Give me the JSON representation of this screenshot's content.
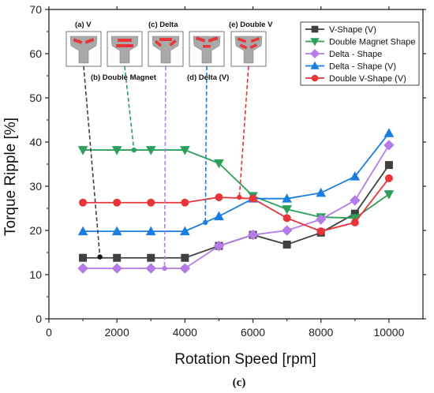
{
  "caption": "(c)",
  "chart_data": {
    "type": "line",
    "xlabel": "Rotation Speed [rpm]",
    "ylabel": "Torque Ripple [%]",
    "xlim": [
      0,
      11000
    ],
    "ylim": [
      0,
      70
    ],
    "xticks": [
      0,
      2000,
      4000,
      6000,
      8000,
      10000
    ],
    "yticks": [
      0,
      10,
      20,
      30,
      40,
      50,
      60,
      70
    ],
    "grid": false,
    "legend_position": "top-right",
    "x": [
      1000,
      2000,
      3000,
      4000,
      5000,
      6000,
      7000,
      8000,
      9000,
      10000
    ],
    "series": [
      {
        "name": "V-Shape (V)",
        "color": "#404040",
        "marker": "square",
        "values": [
          13.8,
          13.8,
          13.8,
          13.8,
          16.5,
          19.0,
          16.8,
          19.5,
          23.8,
          34.8
        ]
      },
      {
        "name": "Double Magnet Shape",
        "color": "#2ca05a",
        "marker": "triangle-down",
        "values": [
          38.2,
          38.2,
          38.2,
          38.2,
          35.2,
          27.8,
          24.8,
          23.0,
          22.8,
          28.2
        ]
      },
      {
        "name": "Delta - Shape",
        "color": "#b57be6",
        "marker": "diamond",
        "values": [
          11.4,
          11.4,
          11.4,
          11.4,
          16.5,
          19.0,
          20.0,
          22.5,
          26.8,
          39.3
        ]
      },
      {
        "name": "Delta - Shape (V)",
        "color": "#1a7ee0",
        "marker": "triangle-up",
        "values": [
          19.8,
          19.8,
          19.8,
          19.8,
          23.2,
          27.2,
          27.2,
          28.5,
          32.2,
          42.0
        ]
      },
      {
        "name": "Double V-Shape (V)",
        "color": "#e8353a",
        "marker": "circle",
        "values": [
          26.3,
          26.3,
          26.3,
          26.3,
          27.5,
          27.2,
          22.8,
          19.8,
          21.8,
          31.8
        ]
      }
    ],
    "annotations": [
      {
        "label": "(a) V",
        "series": 0,
        "x": 1500,
        "y": 14.0
      },
      {
        "label": "(b) Double Magnet",
        "series": 1,
        "x": 2500,
        "y": 38.2
      },
      {
        "label": "(c) Delta",
        "series": 2,
        "x": 3400,
        "y": 11.4
      },
      {
        "label": "(d) Delta (V)",
        "series": 3,
        "x": 4600,
        "y": 21.8
      },
      {
        "label": "(e) Double V",
        "series": 4,
        "x": 5600,
        "y": 27.5
      }
    ]
  }
}
